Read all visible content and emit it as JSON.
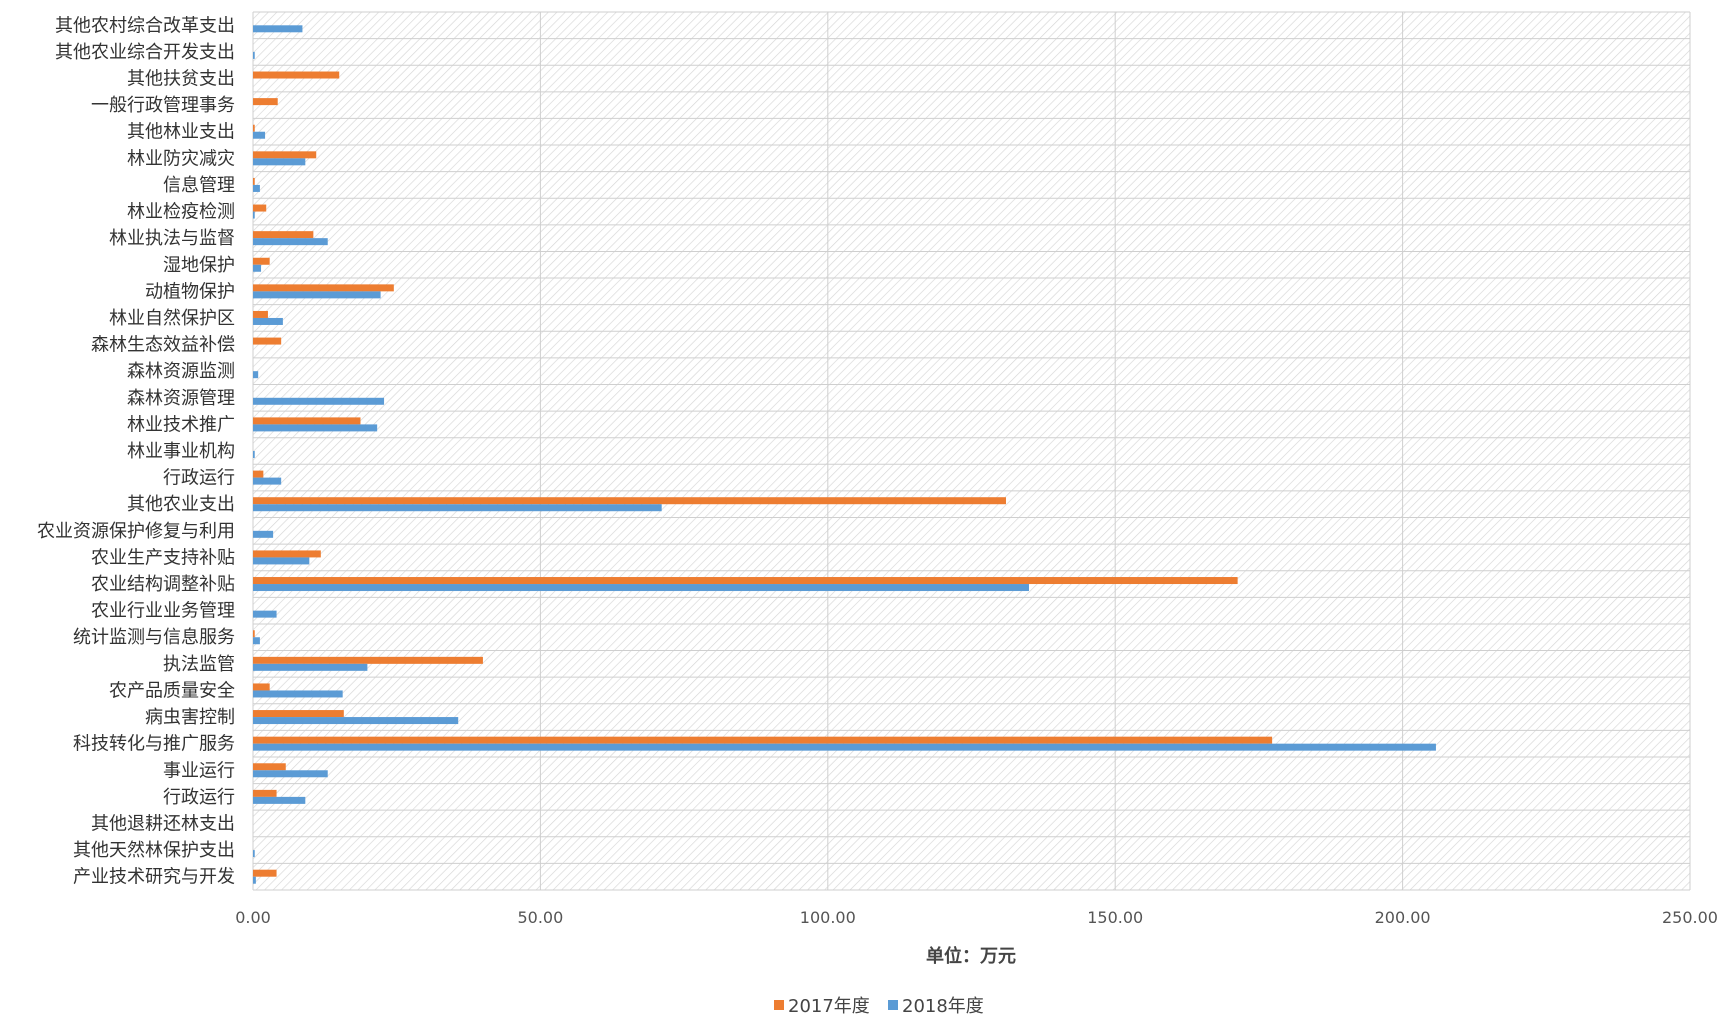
{
  "chart_data": {
    "type": "bar",
    "orientation": "horizontal",
    "title": "",
    "xlabel": "单位：万元",
    "ylabel": "",
    "xlim": [
      0,
      250
    ],
    "xticks": [
      "0.00",
      "50.00",
      "100.00",
      "150.00",
      "200.00",
      "250.00"
    ],
    "grid": true,
    "legend_position": "bottom",
    "categories": [
      "其他农村综合改革支出",
      "其他农业综合开发支出",
      "其他扶贫支出",
      "一般行政管理事务",
      "其他林业支出",
      "林业防灾减灾",
      "信息管理",
      "林业检疫检测",
      "林业执法与监督",
      "湿地保护",
      "动植物保护",
      "林业自然保护区",
      "森林生态效益补偿",
      "森林资源监测",
      "森林资源管理",
      "林业技术推广",
      "林业事业机构",
      "行政运行",
      "其他农业支出",
      "农业资源保护修复与利用",
      "农业生产支持补贴",
      "农业结构调整补贴",
      "农业行业业务管理",
      "统计监测与信息服务",
      "执法监管",
      "农产品质量安全",
      "病虫害控制",
      "科技转化与推广服务",
      "事业运行",
      "行政运行",
      "其他退耕还林支出",
      "其他天然林保护支出",
      "产业技术研究与开发"
    ],
    "series": [
      {
        "name": "2017年度",
        "color": "#ED7D31",
        "values": [
          0,
          0,
          15,
          4.3,
          0.3,
          11,
          0.3,
          2.3,
          10.5,
          2.9,
          24.5,
          2.6,
          4.9,
          0,
          0,
          18.7,
          0,
          1.8,
          131,
          0,
          11.8,
          171.3,
          0,
          0.3,
          40,
          2.9,
          15.8,
          177.3,
          5.7,
          4.1,
          0,
          0,
          4.1
        ]
      },
      {
        "name": "2018年度",
        "color": "#5B9BD5",
        "values": [
          8.6,
          0.3,
          0,
          0,
          2.1,
          9.1,
          1.2,
          0.3,
          13,
          1.4,
          22.2,
          5.2,
          0,
          0.9,
          22.8,
          21.6,
          0.3,
          4.9,
          71.1,
          3.5,
          9.8,
          135,
          4.1,
          1.2,
          19.9,
          15.6,
          35.7,
          205.8,
          13,
          9.1,
          0,
          0.3,
          0.5
        ]
      }
    ]
  }
}
